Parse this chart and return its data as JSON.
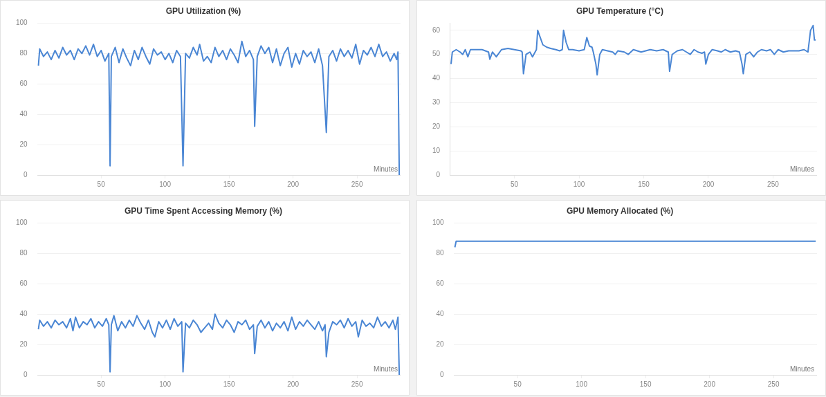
{
  "chart_data": [
    {
      "type": "line",
      "title": "GPU Utilization (%)",
      "xlabel": "Minutes",
      "xlim": [
        0,
        284
      ],
      "xticks": [
        50,
        100,
        150,
        200,
        250
      ],
      "ylim": [
        0,
        100
      ],
      "yticks": [
        0,
        20,
        40,
        60,
        80,
        100
      ],
      "grid": "y",
      "legend": false,
      "series": [
        {
          "color": "#4a86d4",
          "x": [
            1,
            2,
            5,
            8,
            11,
            14,
            17,
            20,
            23,
            26,
            29,
            32,
            35,
            38,
            41,
            44,
            47,
            50,
            53,
            56,
            57,
            58,
            61,
            64,
            67,
            70,
            73,
            76,
            79,
            82,
            85,
            88,
            91,
            94,
            97,
            100,
            103,
            106,
            109,
            112,
            114,
            116,
            119,
            122,
            125,
            127,
            130,
            133,
            136,
            139,
            142,
            145,
            148,
            151,
            154,
            157,
            160,
            163,
            166,
            169,
            170,
            172,
            175,
            178,
            181,
            184,
            187,
            190,
            193,
            196,
            199,
            202,
            205,
            208,
            211,
            214,
            217,
            220,
            223,
            226,
            228,
            231,
            234,
            237,
            240,
            243,
            246,
            249,
            252,
            255,
            258,
            261,
            264,
            267,
            270,
            273,
            276,
            279,
            281,
            282,
            283
          ],
          "values": [
            72,
            83,
            78,
            81,
            76,
            82,
            77,
            84,
            79,
            82,
            76,
            83,
            80,
            85,
            79,
            86,
            78,
            82,
            75,
            80,
            6,
            78,
            84,
            74,
            83,
            77,
            72,
            82,
            76,
            84,
            78,
            73,
            83,
            79,
            81,
            76,
            80,
            74,
            82,
            78,
            6,
            80,
            77,
            84,
            79,
            86,
            75,
            78,
            74,
            84,
            78,
            82,
            76,
            83,
            79,
            74,
            88,
            78,
            82,
            76,
            32,
            78,
            85,
            80,
            84,
            74,
            83,
            72,
            80,
            84,
            71,
            80,
            73,
            82,
            78,
            81,
            74,
            83,
            72,
            28,
            78,
            82,
            75,
            83,
            78,
            82,
            77,
            86,
            73,
            82,
            79,
            84,
            78,
            86,
            78,
            81,
            75,
            80,
            76,
            81,
            0
          ]
        }
      ]
    },
    {
      "type": "line",
      "title": "GPU Temperature (°C)",
      "xlabel": "Minutes",
      "xlim": [
        0,
        284
      ],
      "xticks": [
        50,
        100,
        150,
        200,
        250
      ],
      "ylim": [
        0,
        63
      ],
      "yticks": [
        0,
        10,
        20,
        30,
        40,
        50,
        60
      ],
      "grid": "y",
      "legend": false,
      "series": [
        {
          "color": "#4a86d4",
          "x": [
            1,
            2,
            5,
            8,
            10,
            12,
            14,
            16,
            20,
            25,
            30,
            31,
            33,
            36,
            40,
            45,
            50,
            55,
            56,
            57,
            59,
            62,
            64,
            66,
            67,
            68,
            70,
            72,
            75,
            78,
            82,
            85,
            87,
            88,
            90,
            92,
            95,
            100,
            104,
            106,
            108,
            110,
            111,
            113,
            114,
            116,
            118,
            122,
            126,
            128,
            130,
            135,
            138,
            142,
            148,
            155,
            160,
            165,
            169,
            170,
            172,
            176,
            180,
            183,
            186,
            189,
            192,
            195,
            197,
            198,
            200,
            203,
            207,
            210,
            213,
            217,
            221,
            224,
            226,
            227,
            229,
            232,
            235,
            238,
            241,
            245,
            248,
            251,
            254,
            258,
            262,
            266,
            270,
            274,
            277,
            279,
            281,
            282,
            283
          ],
          "values": [
            46,
            51,
            52,
            51,
            50,
            52,
            49,
            52,
            52,
            52,
            51,
            48,
            51,
            49,
            52,
            52.5,
            52,
            51.5,
            51,
            42,
            50,
            51,
            49,
            51,
            52,
            60,
            57,
            54,
            53,
            52.5,
            52,
            51.5,
            52,
            60,
            55,
            52,
            52,
            51.5,
            52,
            57,
            53.5,
            53,
            51,
            46,
            41.5,
            50,
            52,
            51.5,
            51,
            50,
            51.5,
            51,
            50,
            52,
            51,
            52,
            51.5,
            52,
            51,
            43,
            50,
            51.5,
            52,
            51,
            50,
            52,
            51,
            50.5,
            51,
            46,
            50,
            52,
            51.5,
            51,
            52,
            51,
            51.5,
            51,
            46,
            42,
            50,
            51,
            49,
            51,
            52,
            51.5,
            52,
            50,
            52,
            51,
            51.5,
            51.5,
            51.5,
            52,
            51,
            60,
            62,
            56,
            56
          ]
        }
      ]
    },
    {
      "type": "line",
      "title": "GPU Time Spent Accessing Memory (%)",
      "xlabel": "Minutes",
      "xlim": [
        0,
        284
      ],
      "xticks": [
        50,
        100,
        150,
        200,
        250
      ],
      "ylim": [
        0,
        100
      ],
      "yticks": [
        0,
        20,
        40,
        60,
        80,
        100
      ],
      "grid": "y",
      "legend": false,
      "series": [
        {
          "color": "#4a86d4",
          "x": [
            1,
            2,
            5,
            8,
            11,
            14,
            17,
            20,
            23,
            26,
            28,
            30,
            33,
            36,
            39,
            42,
            45,
            48,
            51,
            54,
            56,
            57,
            58,
            60,
            63,
            66,
            69,
            72,
            75,
            78,
            81,
            84,
            87,
            90,
            92,
            95,
            98,
            101,
            104,
            107,
            110,
            113,
            114,
            116,
            119,
            122,
            125,
            128,
            131,
            134,
            137,
            139,
            142,
            145,
            148,
            151,
            154,
            157,
            160,
            163,
            166,
            169,
            170,
            172,
            175,
            178,
            181,
            184,
            187,
            190,
            193,
            196,
            199,
            202,
            205,
            208,
            211,
            214,
            217,
            220,
            223,
            225,
            226,
            228,
            231,
            234,
            237,
            240,
            243,
            246,
            249,
            251,
            254,
            257,
            260,
            263,
            266,
            269,
            272,
            275,
            278,
            280,
            282,
            283
          ],
          "values": [
            30,
            36,
            32,
            35,
            31,
            36,
            33,
            35,
            31,
            37,
            29,
            38,
            31,
            35,
            33,
            37,
            31,
            35,
            32,
            37,
            33,
            2,
            33,
            39,
            29,
            35,
            31,
            36,
            32,
            39,
            34,
            30,
            36,
            28,
            25,
            35,
            31,
            36,
            30,
            37,
            32,
            35,
            2,
            34,
            31,
            36,
            33,
            28,
            31,
            34,
            30,
            40,
            34,
            31,
            36,
            33,
            28,
            35,
            33,
            36,
            30,
            33,
            14,
            32,
            36,
            31,
            35,
            29,
            34,
            31,
            35,
            29,
            38,
            30,
            35,
            32,
            36,
            33,
            30,
            35,
            29,
            33,
            12,
            28,
            35,
            33,
            36,
            31,
            37,
            32,
            35,
            25,
            36,
            32,
            34,
            31,
            38,
            32,
            35,
            31,
            36,
            30,
            38,
            0
          ]
        }
      ]
    },
    {
      "type": "line",
      "title": "GPU Memory Allocated (%)",
      "xlabel": "Minutes",
      "xlim": [
        0,
        284
      ],
      "xticks": [
        50,
        100,
        150,
        200,
        250
      ],
      "ylim": [
        0,
        100
      ],
      "yticks": [
        0,
        20,
        40,
        60,
        80,
        100
      ],
      "grid": "y",
      "legend": false,
      "series": [
        {
          "color": "#4a86d4",
          "x": [
            1,
            2,
            283
          ],
          "values": [
            84,
            88,
            88
          ]
        }
      ]
    }
  ]
}
